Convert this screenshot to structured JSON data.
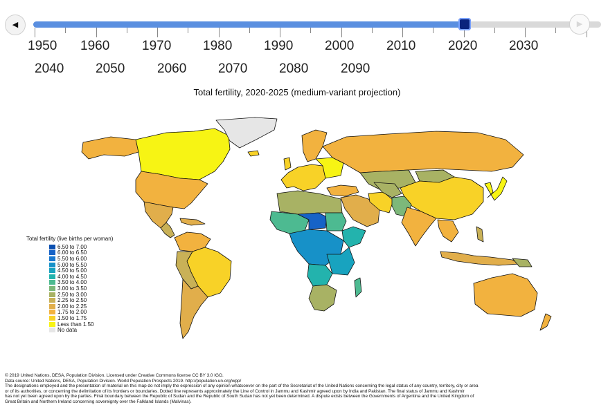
{
  "timeline": {
    "prev_icon": "◀",
    "next_icon": "▶",
    "row1": [
      "1950",
      "1960",
      "1970",
      "1980",
      "1990",
      "2000",
      "2010",
      "2020",
      "2030"
    ],
    "row2": [
      "2040",
      "2050",
      "2060",
      "2070",
      "2080",
      "2090"
    ],
    "selected_year": "2020",
    "progress": 0.76
  },
  "map": {
    "title": "Total fertility, 2020-2025 (medium-variant projection)"
  },
  "legend": {
    "title": "Total fertility (live births per woman)",
    "items": [
      {
        "label": "6.50 to 7.00",
        "color": "#0b4fb0"
      },
      {
        "label": "6.00 to 6.50",
        "color": "#1663c7"
      },
      {
        "label": "5.50 to 6.00",
        "color": "#1878d0"
      },
      {
        "label": "5.00 to 5.50",
        "color": "#1791c8"
      },
      {
        "label": "4.50 to 5.00",
        "color": "#18a3bf"
      },
      {
        "label": "4.00 to 4.50",
        "color": "#23b3ad"
      },
      {
        "label": "3.50 to 4.00",
        "color": "#4dba91"
      },
      {
        "label": "3.00 to 3.50",
        "color": "#7db87a"
      },
      {
        "label": "2.50 to 3.00",
        "color": "#a8b264"
      },
      {
        "label": "2.25 to 2.50",
        "color": "#c9b157"
      },
      {
        "label": "2.00 to 2.25",
        "color": "#e1ae4b"
      },
      {
        "label": "1.75 to 2.00",
        "color": "#f2b23f"
      },
      {
        "label": "1.50 to 1.75",
        "color": "#f8d227"
      },
      {
        "label": "Less than 1.50",
        "color": "#f7f414"
      },
      {
        "label": "No data",
        "color": "#e6e6e6"
      }
    ]
  },
  "footer": {
    "line1": "© 2019 United Nations, DESA, Population Division. Licensed under Creative Commons license CC BY 3.0 IGO.",
    "line2": "Data source: United Nations, DESA, Population Division. World Population Prospects 2019. http://population.un.org/wpp/",
    "line3": "The designations employed and the presentation of material on this map do not imply the expression of any opinion whatsoever on the part of the Secretariat of the United Nations concerning the legal status of any country, territory, city or area",
    "line4": "or of its authorities, or concerning the delimitation of its frontiers or boundaries. Dotted line represents approximately the Line of Control in Jammu and Kashmir agreed upon by India and Pakistan. The final status of Jammu and Kashmir",
    "line5": "has not yet been agreed upon by the parties. Final boundary between the Republic of Sudan and the Republic of South Sudan has not yet been determined. A dispute exists between the Governments of Argentina and the United Kingdom of",
    "line6": "Great Britain and Northern Ireland concerning sovereignty over the Falkland Islands (Malvinas)."
  }
}
